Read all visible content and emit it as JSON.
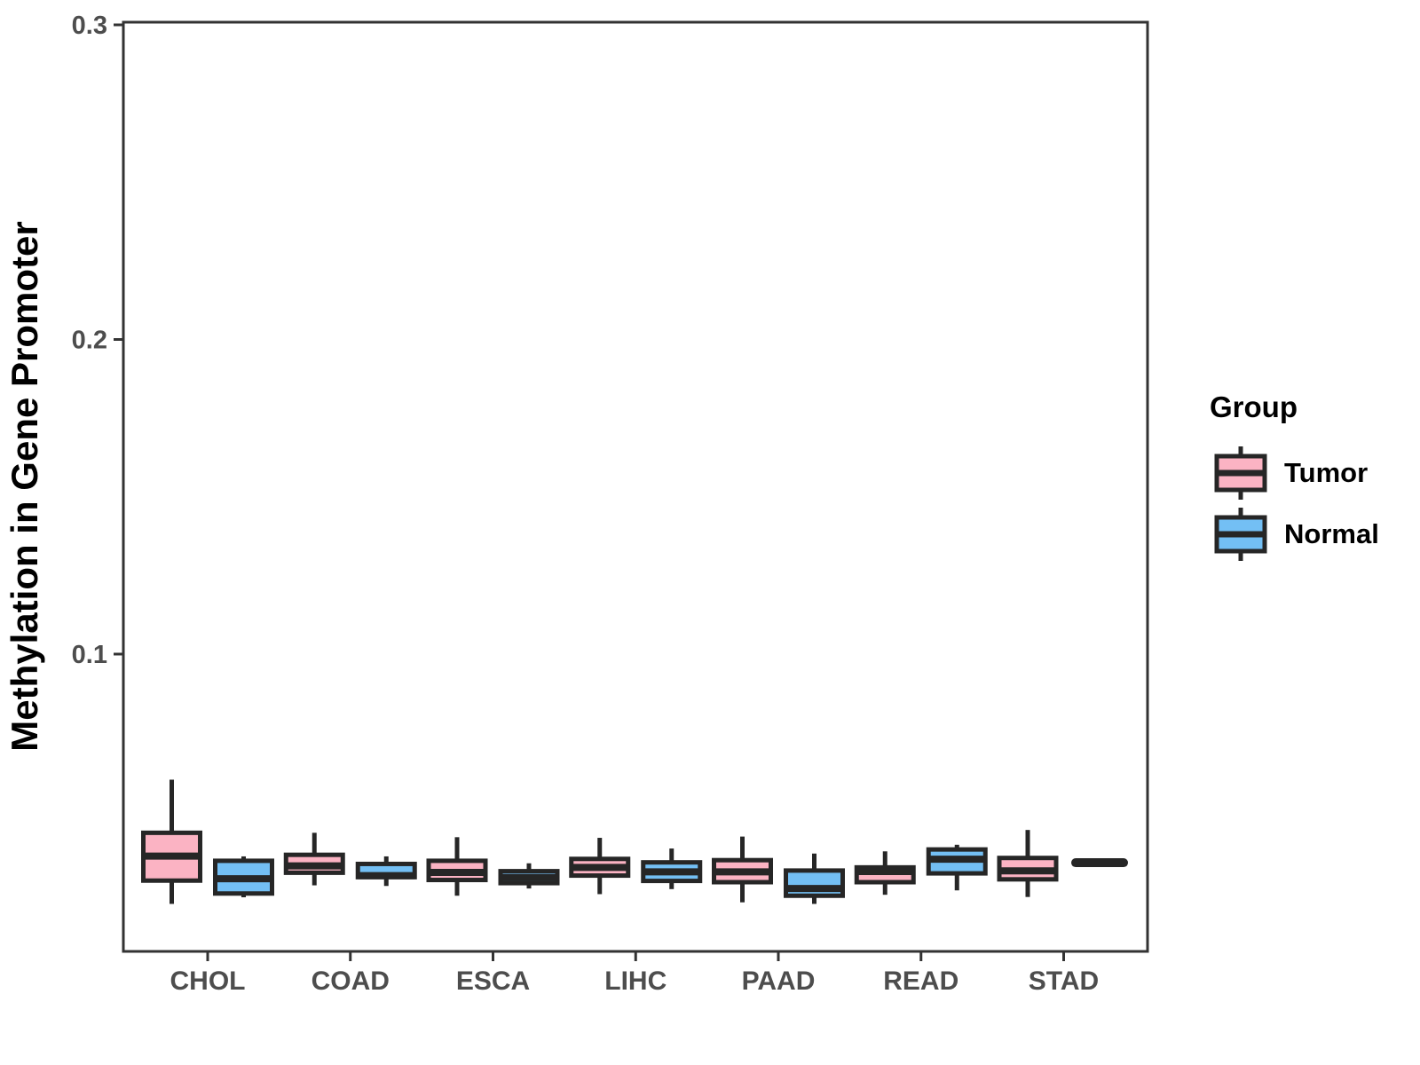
{
  "chart_data": {
    "type": "boxplot",
    "title": "",
    "xlabel": "",
    "ylabel": "Methylation in Gene Promoter",
    "categories": [
      "CHOL",
      "COAD",
      "ESCA",
      "LIHC",
      "PAAD",
      "READ",
      "STAD"
    ],
    "groups": [
      "Tumor",
      "Normal"
    ],
    "y_axis": {
      "tick_values": [
        0.3,
        0.2,
        0.1
      ],
      "tick_labels": [
        "0.3",
        "0.2",
        "0.1"
      ],
      "range_shown": [
        0.005,
        0.301
      ],
      "gridlines": false
    },
    "legend": {
      "title": "Group",
      "position": "right",
      "entries": [
        {
          "label": "Tumor",
          "fill": "#FBB3C3"
        },
        {
          "label": "Normal",
          "fill": "#73BFF4"
        }
      ]
    },
    "series": [
      {
        "name": "Tumor",
        "fill": "#FBB3C3",
        "boxes": [
          {
            "category": "CHOL",
            "whisker_low": 0.0206,
            "q1": 0.028,
            "median": 0.0358,
            "q3": 0.0432,
            "whisker_high": 0.0601
          },
          {
            "category": "COAD",
            "whisker_low": 0.0265,
            "q1": 0.0305,
            "median": 0.0327,
            "q3": 0.0362,
            "whisker_high": 0.0432
          },
          {
            "category": "ESCA",
            "whisker_low": 0.0232,
            "q1": 0.0282,
            "median": 0.0306,
            "q3": 0.0343,
            "whisker_high": 0.0418
          },
          {
            "category": "LIHC",
            "whisker_low": 0.0237,
            "q1": 0.0296,
            "median": 0.0322,
            "q3": 0.0349,
            "whisker_high": 0.0416
          },
          {
            "category": "PAAD",
            "whisker_low": 0.0211,
            "q1": 0.0275,
            "median": 0.0308,
            "q3": 0.0345,
            "whisker_high": 0.042
          },
          {
            "category": "READ",
            "whisker_low": 0.0235,
            "q1": 0.0275,
            "median": 0.0309,
            "q3": 0.0322,
            "whisker_high": 0.0373
          },
          {
            "category": "STAD",
            "whisker_low": 0.0228,
            "q1": 0.0284,
            "median": 0.0311,
            "q3": 0.0352,
            "whisker_high": 0.0441
          }
        ]
      },
      {
        "name": "Normal",
        "fill": "#73BFF4",
        "boxes": [
          {
            "category": "CHOL",
            "whisker_low": 0.0227,
            "q1": 0.0239,
            "median": 0.0286,
            "q3": 0.0343,
            "whisker_high": 0.0357
          },
          {
            "category": "COAD",
            "whisker_low": 0.0263,
            "q1": 0.0291,
            "median": 0.0296,
            "q3": 0.0333,
            "whisker_high": 0.0357
          },
          {
            "category": "ESCA",
            "whisker_low": 0.0255,
            "q1": 0.0272,
            "median": 0.029,
            "q3": 0.031,
            "whisker_high": 0.0335
          },
          {
            "category": "LIHC",
            "whisker_low": 0.0253,
            "q1": 0.0279,
            "median": 0.0308,
            "q3": 0.0338,
            "whisker_high": 0.0382
          },
          {
            "category": "PAAD",
            "whisker_low": 0.0206,
            "q1": 0.0232,
            "median": 0.0255,
            "q3": 0.0312,
            "whisker_high": 0.0366
          },
          {
            "category": "READ",
            "whisker_low": 0.0249,
            "q1": 0.0303,
            "median": 0.0348,
            "q3": 0.0379,
            "whisker_high": 0.0394
          },
          {
            "category": "STAD",
            "whisker_low": 0.0337,
            "q1": 0.0337,
            "median": 0.0337,
            "q3": 0.0337,
            "whisker_high": 0.0337
          }
        ]
      }
    ]
  },
  "colors": {
    "tumor_fill": "#FBB3C3",
    "normal_fill": "#73BFF4",
    "box_stroke": "#262626",
    "axis_text": "#4D4D4D",
    "panel_border": "#333333",
    "title_text": "#000000",
    "background": "#FFFFFF"
  }
}
